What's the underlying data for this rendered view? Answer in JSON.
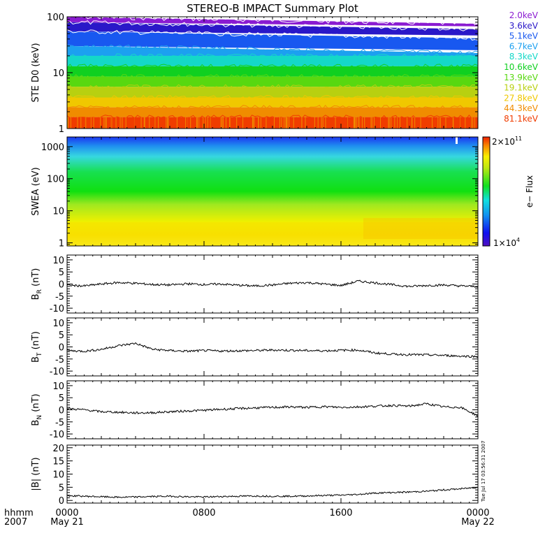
{
  "title": "STEREO-B IMPACT Summary Plot",
  "footer": {
    "unit_label": "hhmm",
    "year_label": "2007",
    "tick_labels": [
      "0000",
      "0800",
      "1600",
      "0000"
    ],
    "date_labels": [
      "May 21",
      "May 22"
    ]
  },
  "timestamp": "Tue Jul 17 03:56:31 2007",
  "chart_data": [
    {
      "type": "line",
      "panel": "STE",
      "ylabel": "STE D0 (keV)",
      "yscale": "log",
      "ylim": [
        1,
        100
      ],
      "yticks": [
        "1",
        "10",
        "100"
      ],
      "xlim_hours": [
        0,
        24
      ],
      "series": [
        {
          "name": "2.0keV",
          "color": "#8a1bd1"
        },
        {
          "name": "3.6keV",
          "color": "#2a18c8"
        },
        {
          "name": "5.1keV",
          "color": "#1858f0"
        },
        {
          "name": "6.7keV",
          "color": "#1ca0f0"
        },
        {
          "name": "8.3keV",
          "color": "#14d8c8"
        },
        {
          "name": "10.6keV",
          "color": "#10d020"
        },
        {
          "name": "13.9keV",
          "color": "#58d810"
        },
        {
          "name": "19.1keV",
          "color": "#b8d010"
        },
        {
          "name": "27.8keV",
          "color": "#f0c800"
        },
        {
          "name": "44.3keV",
          "color": "#f08c00"
        },
        {
          "name": "81.1keV",
          "color": "#f03c00"
        }
      ]
    },
    {
      "type": "heatmap",
      "panel": "SWEA",
      "ylabel": "SWEA (eV)",
      "yscale": "log",
      "ylim": [
        1,
        2000
      ],
      "yticks": [
        "1",
        "10",
        "100",
        "1000"
      ],
      "colorbar": {
        "label": "e− Flux",
        "max_label": "2×10",
        "max_exp": "11",
        "min_label": "1×10",
        "min_exp": "4"
      }
    },
    {
      "type": "line",
      "panel": "BR",
      "ylabel": "B",
      "ylabel_sub": "R",
      "ylabel_unit": "(nT)",
      "ylim": [
        -12,
        12
      ],
      "yticks": [
        "-10",
        "-5",
        "0",
        "5",
        "10"
      ],
      "x_hours": [
        0,
        1,
        2,
        3,
        4,
        5,
        6,
        7,
        8,
        9,
        10,
        11,
        12,
        13,
        14,
        15,
        16,
        17,
        18,
        19,
        20,
        21,
        22,
        23,
        24
      ],
      "values": [
        -0.5,
        -0.8,
        0.0,
        0.6,
        0.3,
        -0.2,
        -0.4,
        0.1,
        -0.2,
        0.0,
        -0.5,
        -0.8,
        -0.4,
        0.3,
        0.6,
        0.0,
        -0.6,
        1.2,
        0.5,
        -0.3,
        -1.0,
        -0.6,
        -0.4,
        -0.8,
        -1.0
      ]
    },
    {
      "type": "line",
      "panel": "BT",
      "ylabel": "B",
      "ylabel_sub": "T",
      "ylabel_unit": "(nT)",
      "ylim": [
        -12,
        12
      ],
      "yticks": [
        "-10",
        "-5",
        "0",
        "5",
        "10"
      ],
      "x_hours": [
        0,
        1,
        2,
        3,
        4,
        5,
        6,
        7,
        8,
        9,
        10,
        11,
        12,
        13,
        14,
        15,
        16,
        17,
        18,
        19,
        20,
        21,
        22,
        23,
        24
      ],
      "values": [
        -1.5,
        -1.8,
        -1.0,
        0.5,
        1.5,
        -1.0,
        -1.5,
        -1.8,
        -1.5,
        -1.7,
        -1.6,
        -1.5,
        -1.3,
        -1.4,
        -1.5,
        -1.6,
        -1.4,
        -1.3,
        -2.5,
        -3.0,
        -3.2,
        -3.3,
        -3.5,
        -3.8,
        -4.0
      ]
    },
    {
      "type": "line",
      "panel": "BN",
      "ylabel": "B",
      "ylabel_sub": "N",
      "ylabel_unit": "(nT)",
      "ylim": [
        -12,
        12
      ],
      "yticks": [
        "-10",
        "-5",
        "0",
        "5",
        "10"
      ],
      "x_hours": [
        0,
        1,
        2,
        3,
        4,
        5,
        6,
        7,
        8,
        9,
        10,
        11,
        12,
        13,
        14,
        15,
        16,
        17,
        18,
        19,
        20,
        21,
        22,
        23,
        24
      ],
      "values": [
        0.5,
        0.0,
        -0.8,
        -1.0,
        -1.3,
        -1.2,
        -0.8,
        -0.5,
        -0.2,
        0.2,
        0.5,
        0.8,
        1.0,
        1.2,
        1.0,
        1.3,
        1.0,
        1.2,
        1.5,
        1.8,
        1.5,
        2.5,
        1.2,
        1.0,
        -2.5
      ]
    },
    {
      "type": "line",
      "panel": "Bmag",
      "ylabel": "|B| (nT)",
      "ylim": [
        -1,
        21
      ],
      "yticks": [
        "0",
        "5",
        "10",
        "15",
        "20"
      ],
      "x_hours": [
        0,
        1,
        2,
        3,
        4,
        5,
        6,
        7,
        8,
        9,
        10,
        11,
        12,
        13,
        14,
        15,
        16,
        17,
        18,
        19,
        20,
        21,
        22,
        23,
        24
      ],
      "values": [
        1.8,
        1.6,
        1.4,
        1.2,
        1.3,
        1.5,
        1.6,
        1.4,
        1.3,
        1.5,
        1.6,
        1.7,
        1.6,
        1.6,
        1.7,
        1.9,
        2.0,
        2.3,
        2.8,
        3.0,
        3.2,
        3.5,
        4.0,
        4.4,
        5.0
      ]
    }
  ]
}
